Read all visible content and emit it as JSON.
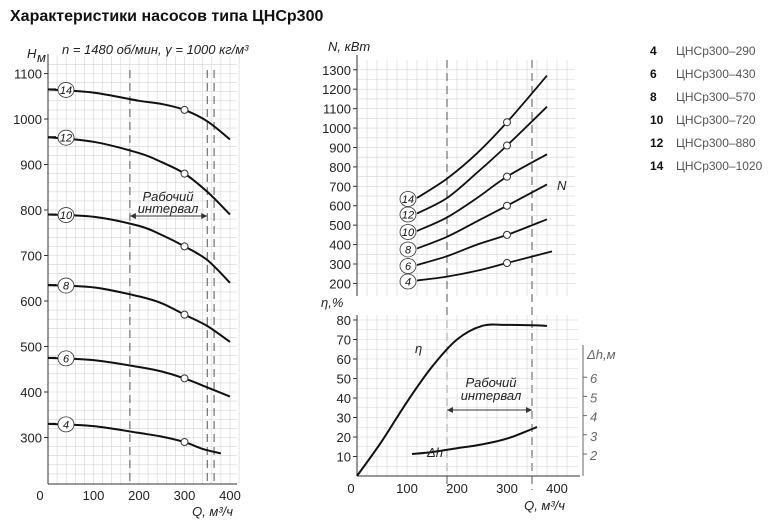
{
  "title": "Характеристики насосов типа ЦНСр300",
  "legend": [
    {
      "num": "4",
      "model": "ЦНСр300–290"
    },
    {
      "num": "6",
      "model": "ЦНСр300–430"
    },
    {
      "num": "8",
      "model": "ЦНСр300–570"
    },
    {
      "num": "10",
      "model": "ЦНСр300–720"
    },
    {
      "num": "12",
      "model": "ЦНСр300–880"
    },
    {
      "num": "14",
      "model": "ЦНСр300–1020"
    }
  ],
  "chart_data": [
    {
      "type": "line",
      "name": "head",
      "ylabel": "H",
      "ylabel_sub": "м",
      "xlabel": "Q, м³/ч",
      "params": "n = 1480 об/мин, γ = 1000 кг/м³",
      "xlim": [
        0,
        420
      ],
      "ylim": [
        200,
        1150
      ],
      "xticks": [
        0,
        100,
        200,
        300,
        400
      ],
      "yticks": [
        300,
        400,
        500,
        600,
        700,
        800,
        900,
        1000,
        1100
      ],
      "grid": true,
      "working_range_label": [
        "Рабочий",
        "интервал"
      ],
      "working_range": [
        180,
        350
      ],
      "dashed_lines": [
        180,
        350,
        365
      ],
      "design_point_q": 300,
      "series": [
        {
          "name": "14",
          "x": [
            0,
            100,
            200,
            250,
            300,
            350,
            400
          ],
          "y": [
            1065,
            1058,
            1040,
            1033,
            1020,
            995,
            955
          ]
        },
        {
          "name": "12",
          "x": [
            0,
            100,
            200,
            250,
            300,
            350,
            400
          ],
          "y": [
            960,
            950,
            925,
            905,
            880,
            840,
            790
          ]
        },
        {
          "name": "10",
          "x": [
            0,
            100,
            200,
            250,
            300,
            350,
            400
          ],
          "y": [
            790,
            785,
            765,
            745,
            720,
            690,
            640
          ]
        },
        {
          "name": "8",
          "x": [
            0,
            100,
            200,
            250,
            300,
            350,
            400
          ],
          "y": [
            635,
            630,
            610,
            595,
            570,
            545,
            510
          ]
        },
        {
          "name": "6",
          "x": [
            0,
            100,
            200,
            250,
            300,
            350,
            400
          ],
          "y": [
            475,
            470,
            455,
            445,
            430,
            410,
            390
          ]
        },
        {
          "name": "4",
          "x": [
            0,
            100,
            200,
            250,
            300,
            340,
            380
          ],
          "y": [
            330,
            325,
            310,
            302,
            290,
            275,
            265
          ]
        }
      ]
    },
    {
      "type": "line",
      "name": "power",
      "ylabel": "N, кВт",
      "curve_label": "N",
      "xlabel": "Q, м³/ч",
      "xlim": [
        0,
        430
      ],
      "ylim": [
        180,
        1320
      ],
      "yticks": [
        200,
        300,
        400,
        500,
        600,
        700,
        800,
        900,
        1000,
        1100,
        1200,
        1300
      ],
      "grid": true,
      "series": [
        {
          "name": "14",
          "x": [
            120,
            180,
            240,
            300,
            380
          ],
          "y": [
            640,
            740,
            870,
            1030,
            1270
          ]
        },
        {
          "name": "12",
          "x": [
            120,
            180,
            240,
            300,
            380
          ],
          "y": [
            560,
            640,
            770,
            910,
            1110
          ]
        },
        {
          "name": "10",
          "x": [
            120,
            180,
            240,
            300,
            380
          ],
          "y": [
            470,
            540,
            640,
            750,
            865
          ]
        },
        {
          "name": "8",
          "x": [
            120,
            180,
            240,
            300,
            380
          ],
          "y": [
            380,
            440,
            520,
            600,
            710
          ]
        },
        {
          "name": "6",
          "x": [
            120,
            180,
            240,
            300,
            380
          ],
          "y": [
            295,
            340,
            400,
            450,
            530
          ]
        },
        {
          "name": "4",
          "x": [
            120,
            180,
            240,
            300,
            390
          ],
          "y": [
            215,
            235,
            265,
            305,
            365
          ]
        }
      ]
    },
    {
      "type": "line",
      "name": "efficiency_npsh",
      "ylabel": "η,%",
      "ylabel2": "Δh,м",
      "xlabel": "Q, м³/ч",
      "xlim": [
        0,
        430
      ],
      "xticks": [
        0,
        100,
        200,
        300,
        400
      ],
      "ylim": [
        0,
        85
      ],
      "yticks": [
        10,
        20,
        30,
        40,
        50,
        60,
        70,
        80
      ],
      "y2ticks": [
        2,
        3,
        4,
        5,
        6
      ],
      "y2lim": [
        1.5,
        7.3
      ],
      "grid": true,
      "working_range_label": [
        "Рабочий",
        "интервал"
      ],
      "working_range": [
        180,
        350
      ],
      "series": [
        {
          "name": "η",
          "x": [
            0,
            50,
            100,
            150,
            200,
            250,
            300,
            350,
            380
          ],
          "y": [
            0,
            18,
            38,
            56,
            70,
            77,
            77.5,
            77.3,
            77
          ]
        },
        {
          "name": "Δh",
          "axis": "y2",
          "x": [
            110,
            150,
            200,
            250,
            300,
            350,
            360
          ],
          "y": [
            2.0,
            2.1,
            2.3,
            2.5,
            2.8,
            3.3,
            3.4
          ]
        }
      ]
    }
  ]
}
